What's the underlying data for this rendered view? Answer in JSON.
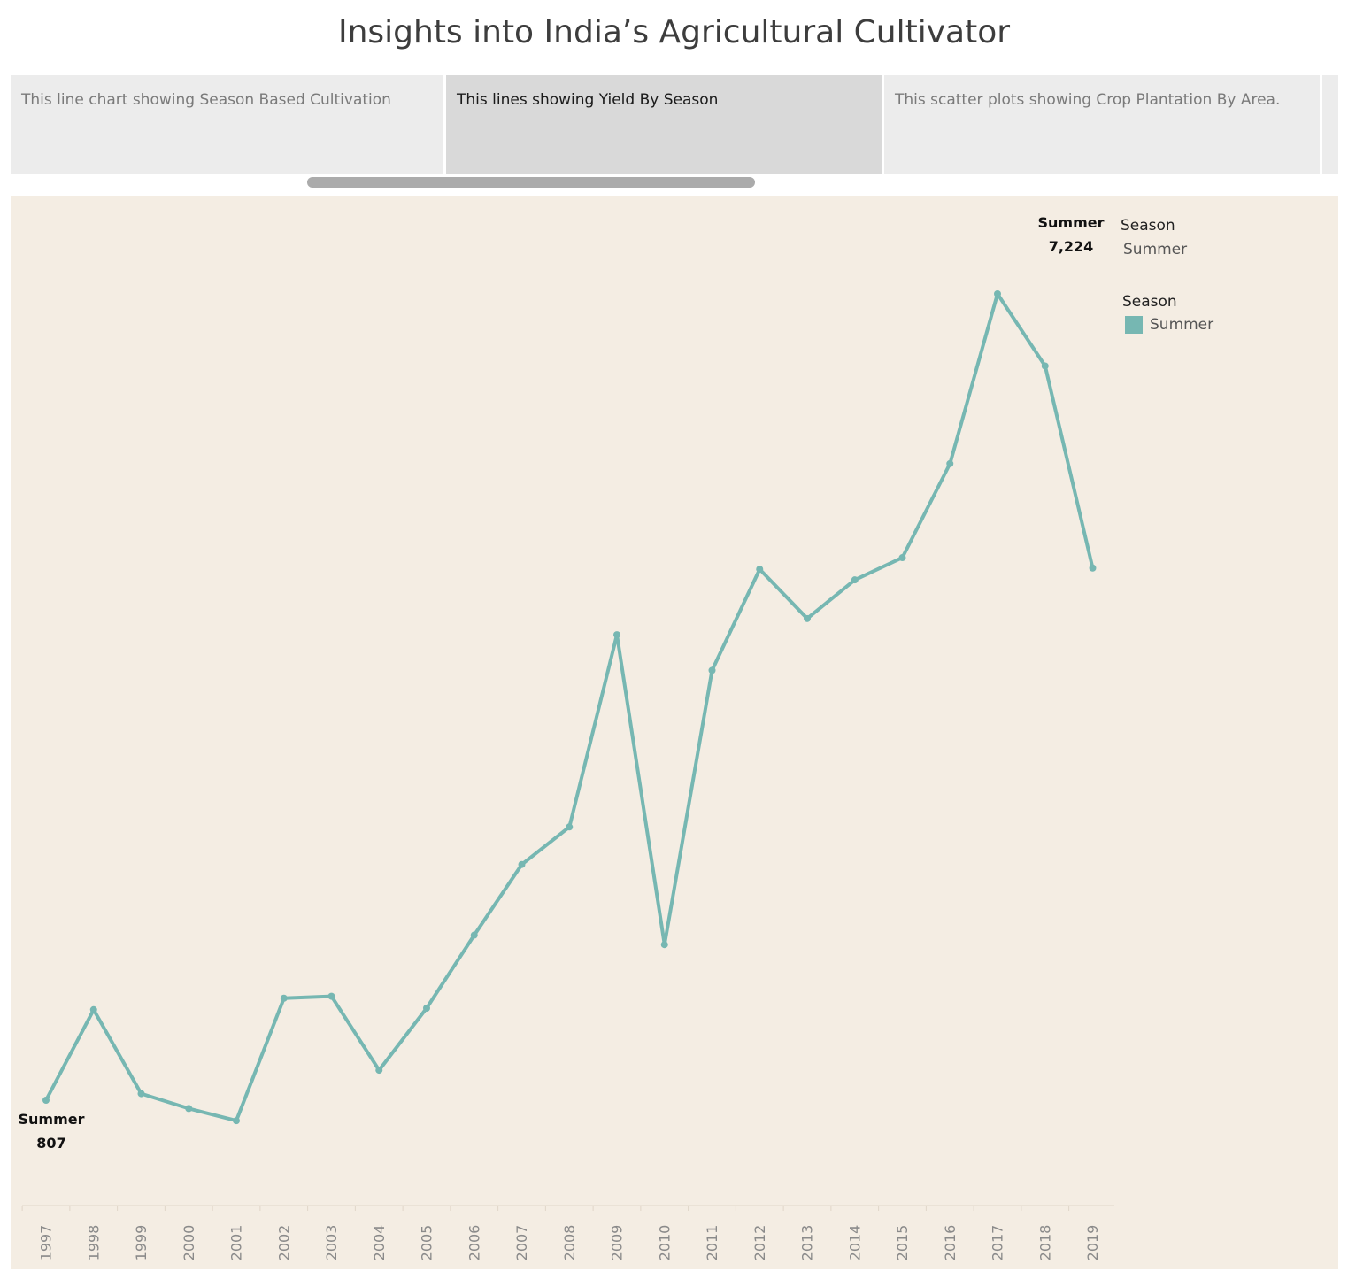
{
  "title": "Insights into India’s Agricultural Cultivator",
  "story_points": [
    {
      "label": "This line chart showing Season Based Cultivation",
      "active": false
    },
    {
      "label": "This lines showing Yield By Season",
      "active": true
    },
    {
      "label": "This scatter plots showing Crop Plantation By Area.",
      "active": false
    }
  ],
  "legends": {
    "filter": {
      "title": "Season",
      "value": "Summer"
    },
    "color": {
      "title": "Season",
      "items": [
        {
          "label": "Summer",
          "color": "#76b7b2"
        }
      ]
    }
  },
  "colors": {
    "line": "#76b7b2",
    "panel_bg": "#f4ede3"
  },
  "chart_data": {
    "type": "line",
    "categories": [
      "1997",
      "1998",
      "1999",
      "2000",
      "2001",
      "2002",
      "2003",
      "2004",
      "2005",
      "2006",
      "2007",
      "2008",
      "2009",
      "2010",
      "2011",
      "2012",
      "2013",
      "2014",
      "2015",
      "2016",
      "2017",
      "2018",
      "2019"
    ],
    "series": [
      {
        "name": "Summer",
        "values": [
          807,
          1898,
          886,
          707,
          560,
          2037,
          2060,
          1169,
          1917,
          2797,
          3649,
          4102,
          6420,
          2683,
          5990,
          7210,
          6615,
          7081,
          7349,
          8482,
          10530,
          9660,
          7224
        ],
        "end_labels": {
          "first": {
            "season": "Summer",
            "value": "807"
          },
          "last": {
            "season": "Summer",
            "value": "7,224"
          }
        }
      }
    ],
    "xlabel": "",
    "ylabel": "",
    "grid": false,
    "legend_position": "top-right"
  }
}
